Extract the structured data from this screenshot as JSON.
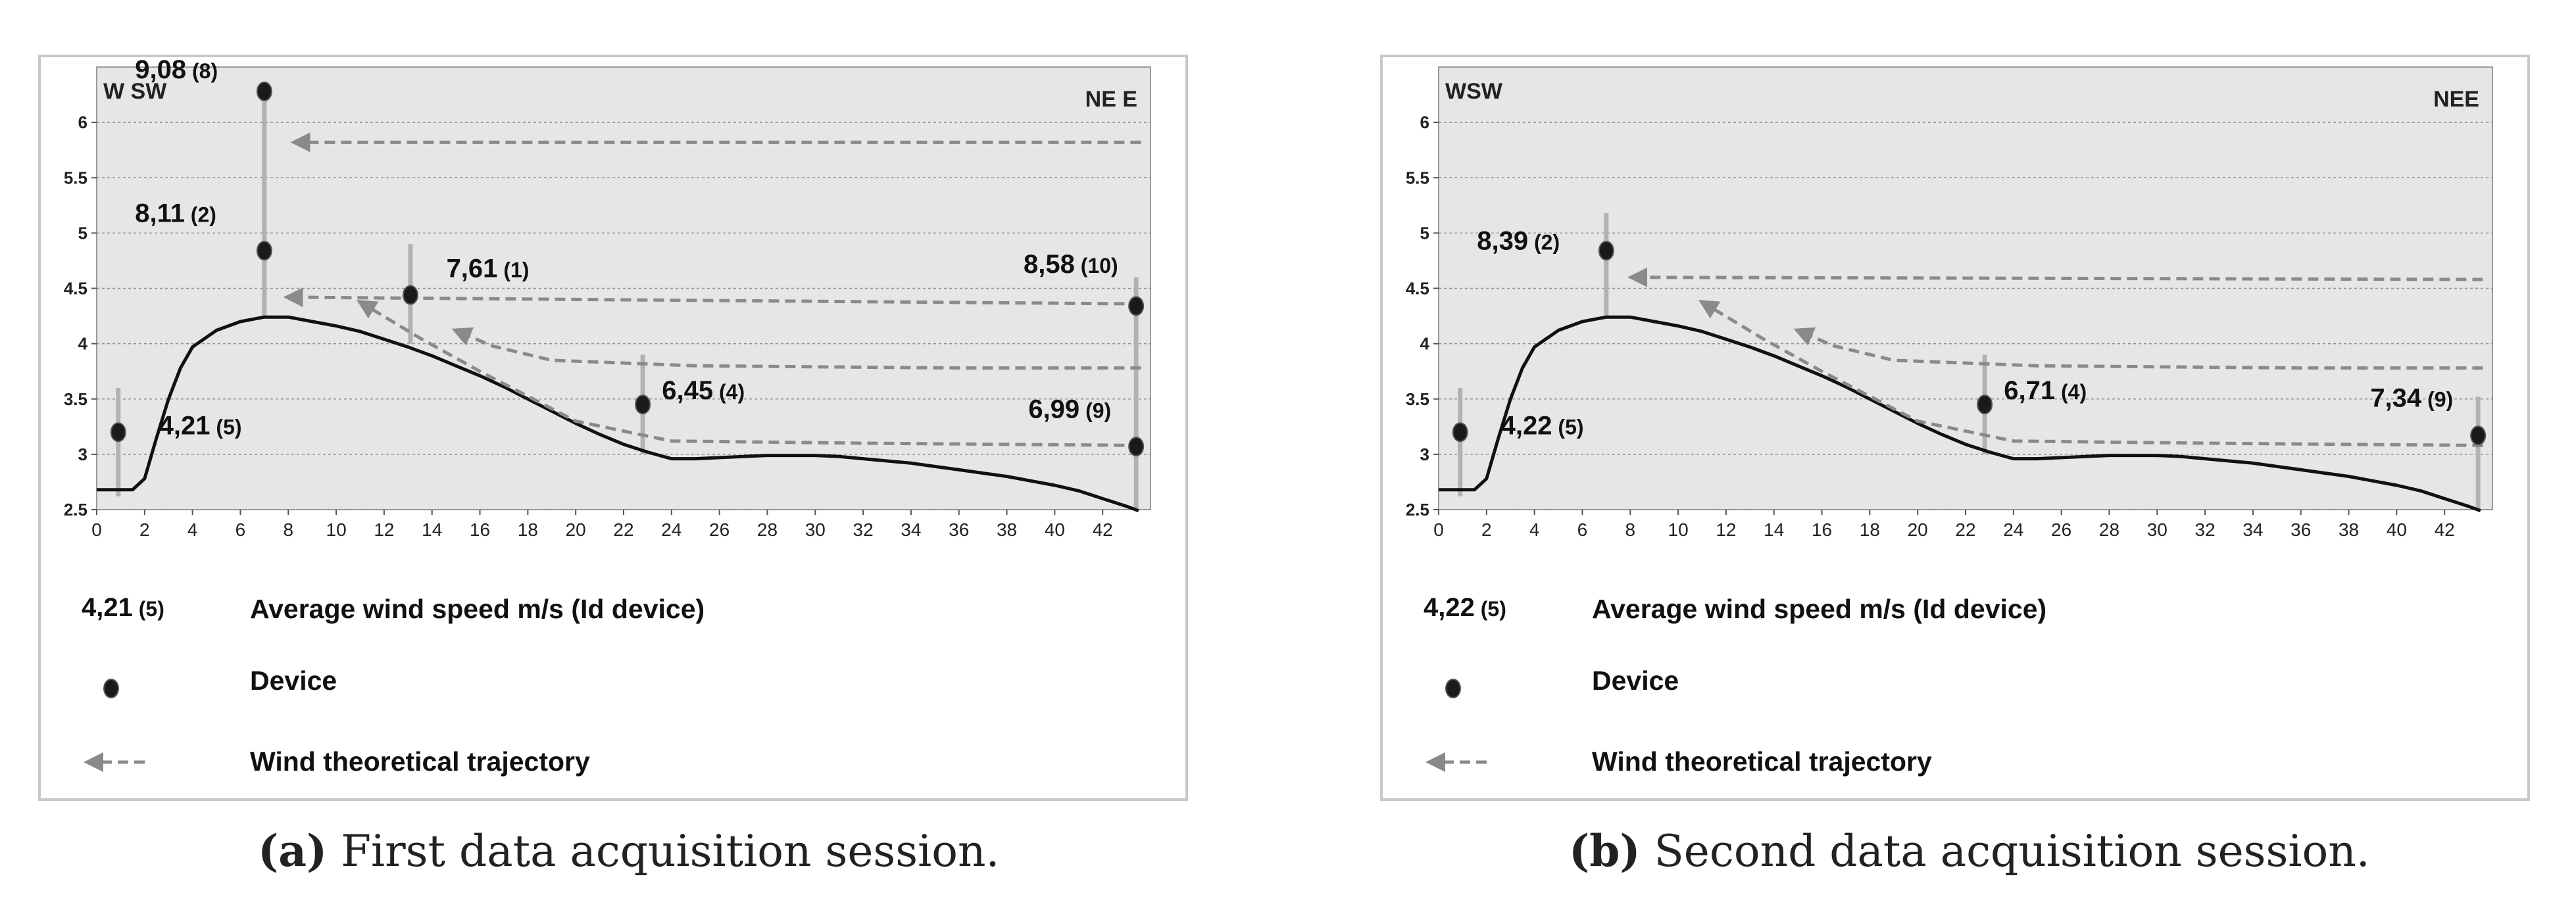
{
  "chart_data": [
    {
      "type": "line",
      "caption_tag": "(a)",
      "caption_text": "First data acquisition session.",
      "dir_left": "W SW",
      "dir_right": "NE E",
      "xlim": [
        0,
        44
      ],
      "ylim": [
        2.5,
        6.5
      ],
      "xticks": [
        "0",
        "2",
        "4",
        "6",
        "8",
        "10",
        "12",
        "14",
        "16",
        "18",
        "20",
        "22",
        "24",
        "26",
        "28",
        "30",
        "32",
        "34",
        "36",
        "38",
        "40",
        "42"
      ],
      "yticks": [
        "2.5",
        "3",
        "3.5",
        "4",
        "4.5",
        "5",
        "5.5",
        "6"
      ],
      "curve": [
        [
          0,
          2.68
        ],
        [
          1,
          2.68
        ],
        [
          1.5,
          2.68
        ],
        [
          2,
          2.78
        ],
        [
          2.5,
          3.15
        ],
        [
          3,
          3.5
        ],
        [
          3.5,
          3.78
        ],
        [
          4,
          3.97
        ],
        [
          5,
          4.12
        ],
        [
          6,
          4.2
        ],
        [
          7,
          4.24
        ],
        [
          8,
          4.24
        ],
        [
          9,
          4.2
        ],
        [
          10,
          4.16
        ],
        [
          11,
          4.11
        ],
        [
          12,
          4.04
        ],
        [
          13,
          3.97
        ],
        [
          14,
          3.89
        ],
        [
          15,
          3.8
        ],
        [
          16,
          3.71
        ],
        [
          17,
          3.61
        ],
        [
          18,
          3.5
        ],
        [
          19,
          3.39
        ],
        [
          20,
          3.28
        ],
        [
          21,
          3.18
        ],
        [
          22,
          3.09
        ],
        [
          23,
          3.02
        ],
        [
          24,
          2.96
        ],
        [
          25,
          2.96
        ],
        [
          26,
          2.97
        ],
        [
          27,
          2.98
        ],
        [
          28,
          2.99
        ],
        [
          29,
          2.99
        ],
        [
          30,
          2.99
        ],
        [
          31,
          2.98
        ],
        [
          32,
          2.96
        ],
        [
          33,
          2.94
        ],
        [
          34,
          2.92
        ],
        [
          35,
          2.89
        ],
        [
          36,
          2.86
        ],
        [
          37,
          2.83
        ],
        [
          38,
          2.8
        ],
        [
          39,
          2.76
        ],
        [
          40,
          2.72
        ],
        [
          41,
          2.67
        ],
        [
          42,
          2.6
        ],
        [
          43,
          2.53
        ],
        [
          43.5,
          2.49
        ]
      ],
      "devices": [
        {
          "x": 0.9,
          "y": 3.2,
          "pole_bottom": 2.62,
          "pole_top": 3.6,
          "value": "4,21",
          "id": "(5)",
          "lx": 2.6,
          "ly": 3.18
        },
        {
          "x": 7.0,
          "y": 4.84,
          "pole_bottom": 4.25,
          "pole_top": 6.28,
          "value": "8,11",
          "id": "(2)",
          "lx": 1.6,
          "ly": 5.1
        },
        {
          "x": 7.0,
          "y": 6.28,
          "pole_bottom": 6.28,
          "pole_top": 6.28,
          "value": "9,08",
          "id": "(8)",
          "lx": 1.6,
          "ly": 6.4
        },
        {
          "x": 13.1,
          "y": 4.44,
          "pole_bottom": 4.0,
          "pole_top": 4.9,
          "value": "7,61",
          "id": "(1)",
          "lx": 14.6,
          "ly": 4.6
        },
        {
          "x": 22.8,
          "y": 3.45,
          "pole_bottom": 3.0,
          "pole_top": 3.9,
          "value": "6,45",
          "id": "(4)",
          "lx": 23.6,
          "ly": 3.5
        },
        {
          "x": 43.4,
          "y": 4.34,
          "pole_bottom": 2.5,
          "pole_top": 4.6,
          "value": "8,58",
          "id": "(10)",
          "lx": 38.7,
          "ly": 4.64
        },
        {
          "x": 43.4,
          "y": 3.07,
          "pole_bottom": 3.07,
          "pole_top": 3.07,
          "value": "6,99",
          "id": "(9)",
          "lx": 38.9,
          "ly": 3.33
        }
      ],
      "trajectories": [
        {
          "points": [
            [
              43.6,
              5.82
            ],
            [
              8.5,
              5.82
            ]
          ]
        },
        {
          "points": [
            [
              43.6,
              4.36
            ],
            [
              8.2,
              4.42
            ]
          ]
        },
        {
          "points": [
            [
              43.6,
              3.78
            ],
            [
              36,
              3.78
            ],
            [
              25,
              3.8
            ],
            [
              19,
              3.85
            ],
            [
              16.5,
              3.98
            ],
            [
              15.2,
              4.1
            ]
          ]
        },
        {
          "points": [
            [
              43.6,
              3.08
            ],
            [
              32,
              3.1
            ],
            [
              24,
              3.12
            ],
            [
              20,
              3.3
            ],
            [
              16,
              3.75
            ],
            [
              13.5,
              4.05
            ],
            [
              11.2,
              4.35
            ]
          ]
        }
      ],
      "legend": {
        "value_sample": "4,21",
        "id_sample": "(5)",
        "value_label": "Average wind speed  m/s  (Id device)",
        "device_label": "Device",
        "trajectory_label": "Wind theoretical trajectory"
      }
    },
    {
      "type": "line",
      "caption_tag": "(b)",
      "caption_text": "Second data acquisition session.",
      "dir_left": "WSW",
      "dir_right": "NEE",
      "xlim": [
        0,
        44
      ],
      "ylim": [
        2.5,
        6.5
      ],
      "xticks": [
        "0",
        "2",
        "4",
        "6",
        "8",
        "10",
        "12",
        "14",
        "16",
        "18",
        "20",
        "22",
        "24",
        "26",
        "28",
        "30",
        "32",
        "34",
        "36",
        "38",
        "40",
        "42"
      ],
      "yticks": [
        "2.5",
        "3",
        "3.5",
        "4",
        "4.5",
        "5",
        "5.5",
        "6"
      ],
      "curve": [
        [
          0,
          2.68
        ],
        [
          1,
          2.68
        ],
        [
          1.5,
          2.68
        ],
        [
          2,
          2.78
        ],
        [
          2.5,
          3.15
        ],
        [
          3,
          3.5
        ],
        [
          3.5,
          3.78
        ],
        [
          4,
          3.97
        ],
        [
          5,
          4.12
        ],
        [
          6,
          4.2
        ],
        [
          7,
          4.24
        ],
        [
          8,
          4.24
        ],
        [
          9,
          4.2
        ],
        [
          10,
          4.16
        ],
        [
          11,
          4.11
        ],
        [
          12,
          4.04
        ],
        [
          13,
          3.97
        ],
        [
          14,
          3.89
        ],
        [
          15,
          3.8
        ],
        [
          16,
          3.71
        ],
        [
          17,
          3.61
        ],
        [
          18,
          3.5
        ],
        [
          19,
          3.39
        ],
        [
          20,
          3.28
        ],
        [
          21,
          3.18
        ],
        [
          22,
          3.09
        ],
        [
          23,
          3.02
        ],
        [
          24,
          2.96
        ],
        [
          25,
          2.96
        ],
        [
          26,
          2.97
        ],
        [
          27,
          2.98
        ],
        [
          28,
          2.99
        ],
        [
          29,
          2.99
        ],
        [
          30,
          2.99
        ],
        [
          31,
          2.98
        ],
        [
          32,
          2.96
        ],
        [
          33,
          2.94
        ],
        [
          34,
          2.92
        ],
        [
          35,
          2.89
        ],
        [
          36,
          2.86
        ],
        [
          37,
          2.83
        ],
        [
          38,
          2.8
        ],
        [
          39,
          2.76
        ],
        [
          40,
          2.72
        ],
        [
          41,
          2.67
        ],
        [
          42,
          2.6
        ],
        [
          43,
          2.53
        ],
        [
          43.5,
          2.49
        ]
      ],
      "devices": [
        {
          "x": 0.9,
          "y": 3.2,
          "pole_bottom": 2.62,
          "pole_top": 3.6,
          "value": "4,22",
          "id": "(5)",
          "lx": 2.6,
          "ly": 3.18
        },
        {
          "x": 7.0,
          "y": 4.84,
          "pole_bottom": 4.25,
          "pole_top": 5.18,
          "value": "8,39",
          "id": "(2)",
          "lx": 1.6,
          "ly": 4.85
        },
        {
          "x": 22.8,
          "y": 3.45,
          "pole_bottom": 3.0,
          "pole_top": 3.9,
          "value": "6,71",
          "id": "(4)",
          "lx": 23.6,
          "ly": 3.5
        },
        {
          "x": 43.4,
          "y": 3.17,
          "pole_bottom": 2.5,
          "pole_top": 3.52,
          "value": "7,34",
          "id": "(9)",
          "lx": 38.9,
          "ly": 3.43
        }
      ],
      "trajectories": [
        {
          "points": [
            [
              43.6,
              4.58
            ],
            [
              8.3,
              4.6
            ]
          ]
        },
        {
          "points": [
            [
              43.6,
              3.78
            ],
            [
              36,
              3.78
            ],
            [
              25,
              3.8
            ],
            [
              19,
              3.85
            ],
            [
              16.5,
              3.98
            ],
            [
              15.2,
              4.1
            ]
          ]
        },
        {
          "points": [
            [
              43.6,
              3.08
            ],
            [
              32,
              3.1
            ],
            [
              24,
              3.12
            ],
            [
              20,
              3.3
            ],
            [
              16,
              3.75
            ],
            [
              13.5,
              4.05
            ],
            [
              11.2,
              4.35
            ]
          ]
        }
      ],
      "legend": {
        "value_sample": "4,22",
        "id_sample": "(5)",
        "value_label": "Average wind speed  m/s  (Id device)",
        "device_label": "Device",
        "trajectory_label": "Wind theoretical trajectory"
      }
    }
  ]
}
